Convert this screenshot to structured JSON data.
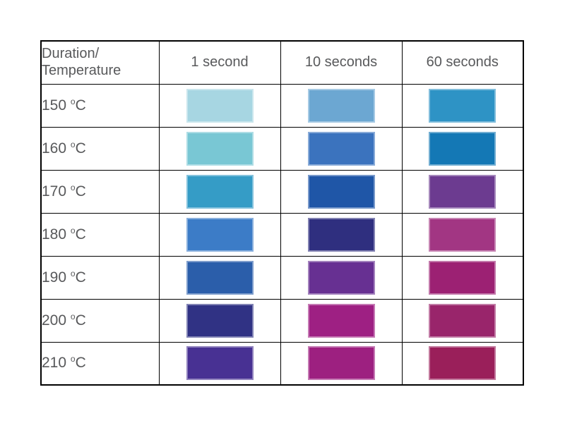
{
  "chart_data": {
    "type": "table",
    "description": "Color swatch table by duration and temperature",
    "corner_header": {
      "line1": "Duration/",
      "line2": "Temperature"
    },
    "column_headers": [
      "1 second",
      "10 seconds",
      "60 seconds"
    ],
    "rows": [
      {
        "temperature": "150",
        "degree": "o",
        "unit": "C",
        "colors": [
          "#a7d6e2",
          "#6ca7d2",
          "#2e93c5"
        ]
      },
      {
        "temperature": "160",
        "degree": "o",
        "unit": "C",
        "colors": [
          "#79c7d4",
          "#3b73be",
          "#1478b5"
        ]
      },
      {
        "temperature": "170",
        "degree": "o",
        "unit": "C",
        "colors": [
          "#359cc6",
          "#1f56a7",
          "#6c3b90"
        ]
      },
      {
        "temperature": "180",
        "degree": "o",
        "unit": "C",
        "colors": [
          "#3c7cc7",
          "#2f2f7f",
          "#a23683"
        ]
      },
      {
        "temperature": "190",
        "degree": "o",
        "unit": "C",
        "colors": [
          "#2b5eaa",
          "#673092",
          "#9c2173"
        ]
      },
      {
        "temperature": "200",
        "degree": "o",
        "unit": "C",
        "colors": [
          "#303284",
          "#9e2083",
          "#99256b"
        ]
      },
      {
        "temperature": "210",
        "degree": "o",
        "unit": "C",
        "colors": [
          "#483193",
          "#9d2080",
          "#9a1f5a"
        ]
      }
    ],
    "layout": {
      "grid": "on",
      "legend": "none",
      "text_color": "#58595b",
      "border_color": "#000000",
      "background_color": "#ffffff"
    }
  }
}
